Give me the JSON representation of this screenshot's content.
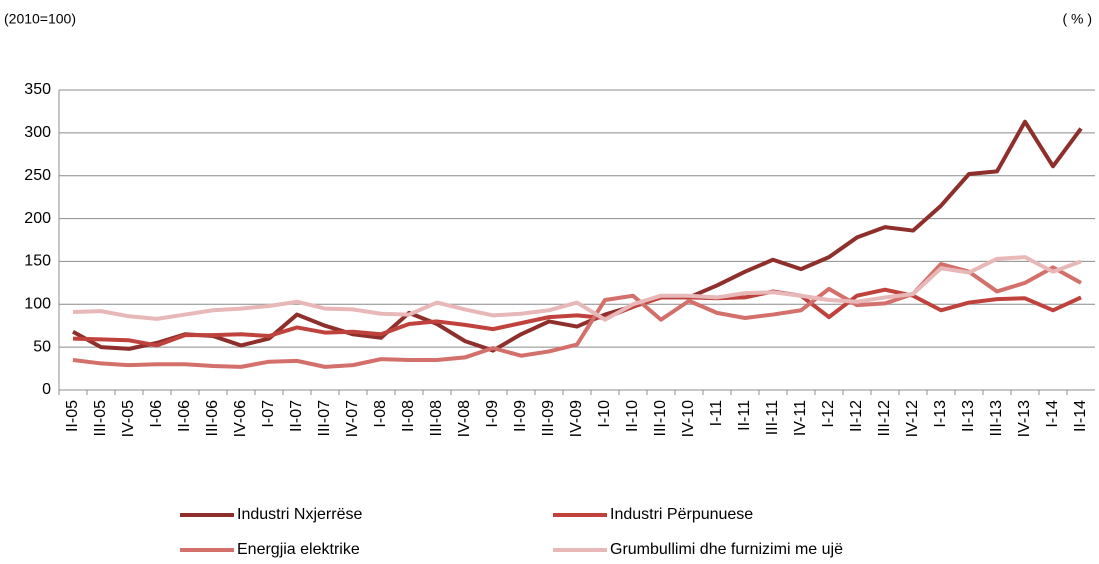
{
  "chart_data": {
    "type": "line",
    "subtitle": "(2010=100)",
    "unit_label": "( % )",
    "categories": [
      "II-05",
      "III-05",
      "IV-05",
      "I-06",
      "II-06",
      "III-06",
      "IV-06",
      "I-07",
      "II-07",
      "III-07",
      "IV-07",
      "I-08",
      "II-08",
      "III-08",
      "IV-08",
      "I-09",
      "II-09",
      "III-09",
      "IV-09",
      "I-10",
      "II-10",
      "III-10",
      "IV-10",
      "I-11",
      "II-11",
      "III-11",
      "IV-11",
      "I-12",
      "II-12",
      "III-12",
      "IV-12",
      "I-13",
      "II-13",
      "III-13",
      "IV-13",
      "I-14",
      "II-14"
    ],
    "series": [
      {
        "name": "Industri Nxjerrëse",
        "color": "#8e2f2c",
        "values": [
          68,
          50,
          48,
          55,
          65,
          63,
          52,
          60,
          88,
          75,
          65,
          61,
          90,
          77,
          57,
          46,
          65,
          80,
          74,
          88,
          98,
          108,
          108,
          122,
          138,
          152,
          141,
          155,
          178,
          190,
          186,
          215,
          252,
          255,
          313,
          261,
          305
        ]
      },
      {
        "name": "Industri Përpunuese",
        "color": "#c0423d",
        "values": [
          60,
          59,
          58,
          52,
          64,
          64,
          65,
          63,
          73,
          67,
          68,
          65,
          77,
          80,
          76,
          71,
          78,
          85,
          87,
          84,
          97,
          108,
          108,
          107,
          108,
          115,
          110,
          85,
          110,
          117,
          110,
          93,
          102,
          106,
          107,
          93,
          108
        ]
      },
      {
        "name": "Energjia elektrike",
        "color": "#d4706b",
        "values": [
          35,
          31,
          29,
          30,
          30,
          28,
          27,
          33,
          34,
          27,
          29,
          36,
          35,
          35,
          38,
          49,
          40,
          45,
          53,
          105,
          110,
          82,
          104,
          90,
          84,
          88,
          93,
          118,
          99,
          101,
          112,
          147,
          138,
          115,
          125,
          143,
          125
        ]
      },
      {
        "name": "Grumbullimi dhe furnizimi me ujë",
        "color": "#e8b8b8",
        "values": [
          91,
          92,
          86,
          83,
          88,
          93,
          95,
          98,
          103,
          95,
          94,
          89,
          88,
          102,
          94,
          87,
          89,
          93,
          102,
          82,
          100,
          110,
          110,
          108,
          113,
          114,
          110,
          105,
          103,
          108,
          112,
          142,
          137,
          153,
          155,
          138,
          150
        ]
      }
    ],
    "ylim": [
      0,
      350
    ],
    "yticks": [
      0,
      50,
      100,
      150,
      200,
      250,
      300,
      350
    ],
    "grid": true
  }
}
